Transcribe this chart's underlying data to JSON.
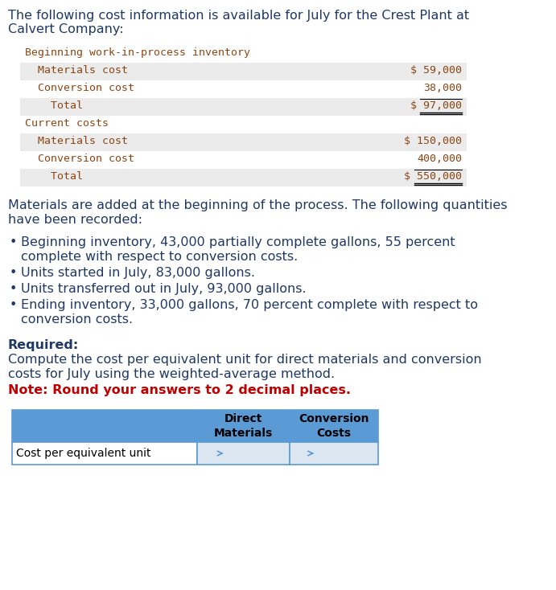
{
  "title_text1": "The following cost information is available for July for the Crest Plant at",
  "title_text2": "Calvert Company:",
  "title_color": "#1f3864",
  "title_fontsize": 11.5,
  "table1_rows": [
    {
      "label": "Beginning work-in-process inventory",
      "value": "",
      "bg": "#ffffff",
      "label_color": "#8B4513",
      "double_underline": false
    },
    {
      "label": "  Materials cost",
      "value": "$ 59,000",
      "bg": "#ebebeb",
      "label_color": "#8B4513",
      "double_underline": false
    },
    {
      "label": "  Conversion cost",
      "value": "38,000",
      "bg": "#ffffff",
      "label_color": "#8B4513",
      "double_underline": false
    },
    {
      "label": "    Total",
      "value": "$ 97,000",
      "bg": "#ebebeb",
      "label_color": "#8B4513",
      "double_underline": true
    },
    {
      "label": "Current costs",
      "value": "",
      "bg": "#ffffff",
      "label_color": "#8B4513",
      "double_underline": false
    },
    {
      "label": "  Materials cost",
      "value": "$ 150,000",
      "bg": "#ebebeb",
      "label_color": "#8B4513",
      "double_underline": false
    },
    {
      "label": "  Conversion cost",
      "value": "400,000",
      "bg": "#ffffff",
      "label_color": "#8B4513",
      "double_underline": false
    },
    {
      "label": "    Total",
      "value": "$ 550,000",
      "bg": "#ebebeb",
      "label_color": "#8B4513",
      "double_underline": true
    }
  ],
  "middle_text1": "Materials are added at the beginning of the process. The following quantities",
  "middle_text2": "have been recorded:",
  "middle_color": "#1f3864",
  "bullets": [
    [
      "Beginning inventory, 43,000 partially complete gallons, 55 percent",
      "complete with respect to conversion costs."
    ],
    [
      "Units started in July, 83,000 gallons.",
      ""
    ],
    [
      "Units transferred out in July, 93,000 gallons.",
      ""
    ],
    [
      "Ending inventory, 33,000 gallons, 70 percent complete with respect to",
      "conversion costs."
    ]
  ],
  "bullet_color": "#1f3864",
  "required_label": "Required:",
  "required_text1": "Compute the cost per equivalent unit for direct materials and conversion",
  "required_text2": "costs for July using the weighted-average method.",
  "note_text": "Note: Round your answers to 2 decimal places.",
  "required_color": "#1f3864",
  "note_color": "#c00000",
  "table2_header": [
    "Direct\nMaterials",
    "Conversion\nCosts"
  ],
  "table2_row_label": "Cost per equivalent unit",
  "table2_header_bg": "#5b9bd5",
  "table2_data_bg": "#dce6f1",
  "table2_border_color": "#5b9bd5",
  "mono_font": "monospace",
  "body_font": "DejaVu Sans"
}
